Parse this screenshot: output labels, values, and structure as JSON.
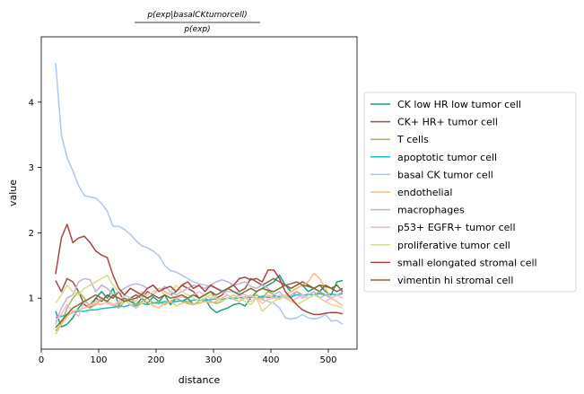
{
  "chart_data": {
    "type": "line",
    "title_numerator": "p(exp|basalCKtumorcell)",
    "title_denominator": "p(exp)",
    "xlabel": "distance",
    "ylabel": "value",
    "xlim": [
      0,
      550
    ],
    "ylim": [
      0.22,
      5.0
    ],
    "xticks": [
      0,
      100,
      200,
      300,
      400,
      500
    ],
    "yticks": [
      1,
      2,
      3,
      4
    ],
    "legend_position": "right-outside",
    "x": [
      25,
      35,
      45,
      55,
      65,
      75,
      85,
      95,
      105,
      115,
      125,
      135,
      145,
      155,
      165,
      175,
      185,
      195,
      205,
      215,
      225,
      235,
      245,
      255,
      265,
      275,
      285,
      295,
      305,
      315,
      325,
      335,
      345,
      355,
      365,
      375,
      385,
      395,
      405,
      415,
      425,
      435,
      445,
      455,
      465,
      475,
      485,
      495,
      505,
      515,
      525
    ],
    "series": [
      {
        "name": "CK low HR low tumor cell",
        "color": "#1b9e77",
        "values": [
          0.8,
          0.56,
          0.6,
          0.7,
          0.85,
          0.95,
          0.9,
          1.0,
          1.1,
          1.0,
          1.15,
          0.9,
          1.0,
          0.95,
          0.9,
          1.0,
          0.92,
          1.02,
          0.95,
          1.05,
          0.9,
          1.0,
          0.95,
          1.0,
          0.9,
          0.95,
          1.0,
          0.85,
          0.78,
          0.82,
          0.85,
          0.9,
          0.92,
          0.88,
          1.0,
          1.1,
          1.15,
          1.2,
          1.25,
          1.35,
          1.2,
          1.1,
          1.15,
          1.2,
          1.1,
          1.15,
          1.2,
          1.1,
          1.05,
          1.25,
          1.27
        ]
      },
      {
        "name": "CK+ HR+ tumor cell",
        "color": "#8c564b",
        "values": [
          1.27,
          1.1,
          1.3,
          1.25,
          1.1,
          0.9,
          0.85,
          1.0,
          0.95,
          1.05,
          1.0,
          1.1,
          0.95,
          1.0,
          1.05,
          1.0,
          1.1,
          1.05,
          1.15,
          1.1,
          1.05,
          1.1,
          1.2,
          1.15,
          1.1,
          1.0,
          1.05,
          1.1,
          1.0,
          1.05,
          1.15,
          1.2,
          1.1,
          1.15,
          1.3,
          1.25,
          1.2,
          1.25,
          1.3,
          1.25,
          1.2,
          1.15,
          1.2,
          1.25,
          1.2,
          1.15,
          1.1,
          1.2,
          1.15,
          1.1,
          1.15
        ]
      },
      {
        "name": "T cells",
        "color": "#9bbb59",
        "values": [
          0.5,
          0.6,
          0.85,
          1.0,
          1.1,
          1.0,
          0.85,
          0.9,
          1.0,
          0.95,
          0.9,
          0.85,
          0.95,
          1.0,
          0.9,
          0.95,
          1.0,
          0.92,
          0.95,
          0.9,
          0.95,
          1.0,
          0.95,
          0.92,
          0.9,
          0.95,
          1.0,
          0.95,
          0.92,
          0.95,
          1.0,
          1.05,
          1.0,
          1.02,
          1.0,
          1.05,
          1.0,
          1.1,
          1.05,
          1.0,
          1.05,
          1.0,
          1.1,
          1.05,
          1.0,
          1.05,
          1.1,
          1.05,
          1.0,
          1.05,
          1.0
        ]
      },
      {
        "name": "apoptotic tumor cell",
        "color": "#17becf",
        "values": [
          0.7,
          0.72,
          0.75,
          0.78,
          0.8,
          0.8,
          0.82,
          0.82,
          0.84,
          0.85,
          0.86,
          0.88,
          0.87,
          0.9,
          0.88,
          0.92,
          0.9,
          0.93,
          0.92,
          0.95,
          0.93,
          0.95,
          0.96,
          0.95,
          0.97,
          0.97,
          0.96,
          0.98,
          0.99,
          0.98,
          1.0,
          0.99,
          1.01,
          1.0,
          1.02,
          1.0,
          1.03,
          1.01,
          1.03,
          1.02,
          1.04,
          1.02,
          1.05,
          1.04,
          1.06,
          1.05,
          1.07,
          1.05,
          1.06,
          1.05,
          1.07
        ]
      },
      {
        "name": "basal CK tumor cell",
        "color": "#aec7e8",
        "values": [
          4.6,
          3.5,
          3.15,
          2.95,
          2.72,
          2.57,
          2.55,
          2.53,
          2.45,
          2.33,
          2.1,
          2.1,
          2.05,
          1.98,
          1.88,
          1.8,
          1.77,
          1.72,
          1.65,
          1.5,
          1.42,
          1.4,
          1.35,
          1.3,
          1.25,
          1.22,
          1.2,
          1.18,
          1.15,
          1.12,
          1.1,
          1.1,
          1.08,
          1.05,
          1.02,
          1.0,
          0.98,
          0.95,
          0.92,
          0.85,
          0.7,
          0.68,
          0.7,
          0.75,
          0.7,
          0.68,
          0.7,
          0.75,
          0.65,
          0.66,
          0.6
        ]
      },
      {
        "name": "endothelial",
        "color": "#ffbb78",
        "values": [
          0.45,
          0.6,
          0.72,
          0.8,
          0.82,
          0.85,
          0.88,
          0.92,
          0.9,
          0.95,
          0.88,
          0.92,
          0.98,
          0.9,
          0.85,
          0.92,
          0.95,
          0.88,
          0.85,
          0.92,
          0.95,
          0.88,
          0.92,
          0.95,
          0.9,
          0.92,
          0.95,
          0.93,
          0.95,
          1.0,
          1.05,
          0.98,
          0.95,
          1.0,
          1.05,
          1.0,
          0.98,
          1.05,
          1.0,
          0.98,
          1.05,
          1.1,
          1.15,
          1.2,
          1.25,
          1.38,
          1.3,
          1.15,
          1.0,
          0.95,
          0.88
        ]
      },
      {
        "name": "macrophages",
        "color": "#c5b0d5",
        "values": [
          0.6,
          0.85,
          1.0,
          1.05,
          1.25,
          1.3,
          1.28,
          1.1,
          1.2,
          1.15,
          1.05,
          1.1,
          1.15,
          1.2,
          1.22,
          1.2,
          1.15,
          1.2,
          1.1,
          1.18,
          1.1,
          1.05,
          1.1,
          1.15,
          1.2,
          1.18,
          1.15,
          1.2,
          1.25,
          1.28,
          1.25,
          1.2,
          1.22,
          1.25,
          1.18,
          1.15,
          1.2,
          1.15,
          1.05,
          1.1,
          1.0,
          1.05,
          1.1,
          1.0,
          1.05,
          1.1,
          1.0,
          1.05,
          1.0,
          1.05,
          1.1
        ]
      },
      {
        "name": "p53+ EGFR+ tumor cell",
        "color": "#f7b6d2",
        "values": [
          0.65,
          0.75,
          0.9,
          0.8,
          0.72,
          0.95,
          0.9,
          0.95,
          1.0,
          0.92,
          0.9,
          0.95,
          1.05,
          1.0,
          0.95,
          1.1,
          1.0,
          1.05,
          1.15,
          1.1,
          1.05,
          1.0,
          1.02,
          1.0,
          1.05,
          1.1,
          1.05,
          1.0,
          1.05,
          1.1,
          1.05,
          1.0,
          1.05,
          1.0,
          0.95,
          1.0,
          0.92,
          0.98,
          1.0,
          1.05,
          1.0,
          0.95,
          1.0,
          1.05,
          1.0,
          1.05,
          1.0,
          0.95,
          1.0,
          1.05,
          1.0
        ]
      },
      {
        "name": "proliferative tumor cell",
        "color": "#dbdb8d",
        "values": [
          0.92,
          1.05,
          1.2,
          1.1,
          1.05,
          1.15,
          1.2,
          1.25,
          1.3,
          1.35,
          1.2,
          1.1,
          1.05,
          1.15,
          1.1,
          1.0,
          1.05,
          1.1,
          1.15,
          1.05,
          1.1,
          1.2,
          1.1,
          1.05,
          1.0,
          0.95,
          1.0,
          1.05,
          1.0,
          0.95,
          1.0,
          1.05,
          1.0,
          0.95,
          0.9,
          1.0,
          0.8,
          0.88,
          0.95,
          1.0,
          1.05,
          0.95,
          0.9,
          0.95,
          1.0,
          1.05,
          1.0,
          0.95,
          0.9,
          0.88,
          0.85
        ]
      },
      {
        "name": "small elongated stromal cell",
        "color": "#a94442",
        "values": [
          1.37,
          1.92,
          2.13,
          1.85,
          1.92,
          1.95,
          1.85,
          1.72,
          1.66,
          1.62,
          1.35,
          1.15,
          1.05,
          1.15,
          1.1,
          1.05,
          1.15,
          1.2,
          1.1,
          1.15,
          1.18,
          1.1,
          1.2,
          1.25,
          1.15,
          1.2,
          1.1,
          1.2,
          1.15,
          1.1,
          1.15,
          1.2,
          1.3,
          1.32,
          1.28,
          1.3,
          1.25,
          1.43,
          1.43,
          1.3,
          1.1,
          1.0,
          0.9,
          0.82,
          0.78,
          0.75,
          0.75,
          0.77,
          0.78,
          0.78,
          0.76
        ]
      },
      {
        "name": "vimentin hi stromal cell",
        "color": "#7f6d2f",
        "values": [
          0.55,
          0.65,
          0.75,
          0.85,
          0.9,
          0.95,
          1.0,
          1.05,
          1.0,
          0.95,
          1.05,
          1.0,
          0.95,
          0.98,
          1.0,
          1.05,
          1.0,
          1.05,
          1.0,
          1.05,
          1.0,
          1.02,
          1.05,
          1.0,
          1.05,
          1.0,
          1.05,
          1.1,
          1.05,
          1.1,
          1.15,
          1.1,
          1.05,
          1.1,
          1.15,
          1.1,
          1.15,
          1.12,
          1.1,
          1.15,
          1.2,
          1.22,
          1.25,
          1.2,
          1.18,
          1.15,
          1.2,
          1.18,
          1.15,
          1.2,
          1.1
        ]
      }
    ]
  }
}
